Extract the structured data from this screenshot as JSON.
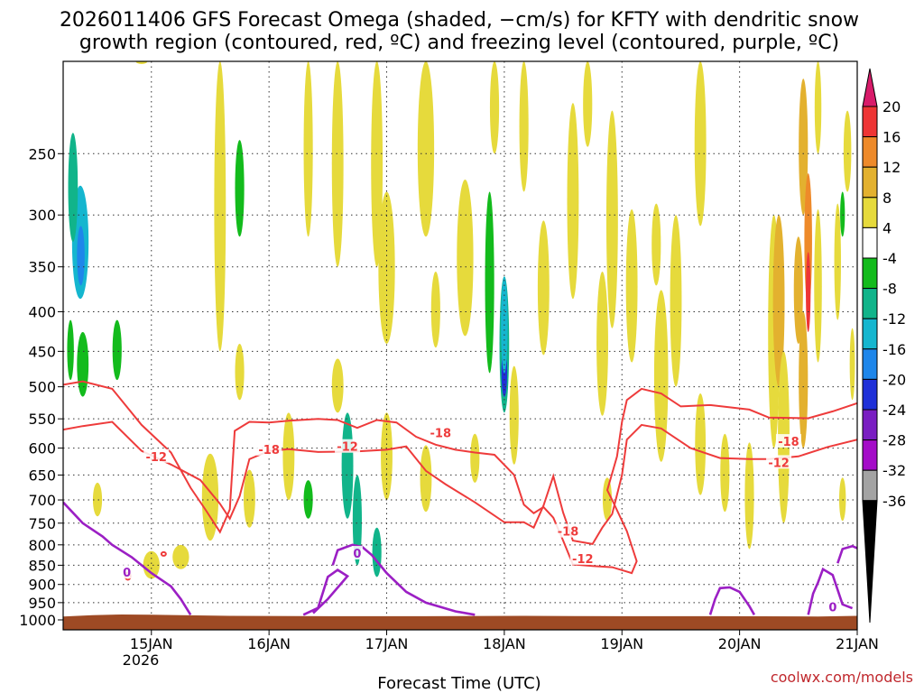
{
  "chart_data": {
    "type": "heatmap",
    "title_line1": "2026011406 GFS Forecast Omega (shaded, −cm/s) for KFTY with dendritic snow",
    "title_line2": "growth region (contoured, red, ºC) and freezing level (contoured, purple, ºC)",
    "xlabel": "Forecast Time (UTC)",
    "source": "coolwx.com/models",
    "x_ticks": [
      "15JAN",
      "16JAN",
      "17JAN",
      "18JAN",
      "19JAN",
      "20JAN",
      "21JAN"
    ],
    "x_year": "2026",
    "x_range_hours": [
      6,
      168
    ],
    "y_ticks": [
      250,
      300,
      350,
      400,
      450,
      500,
      550,
      600,
      650,
      700,
      750,
      800,
      850,
      900,
      950,
      1000
    ],
    "y_range_hPa": [
      190,
      1030
    ],
    "colorbar_labels": [
      "20",
      "16",
      "12",
      "8",
      "4",
      "-4",
      "-8",
      "-12",
      "-16",
      "-20",
      "-24",
      "-28",
      "-32",
      "-36"
    ],
    "colorbar_colors": [
      "#d81b6a",
      "#ee3535",
      "#ee8a2a",
      "#e3b12f",
      "#e6da3c",
      "#ffffff",
      "#13bb1c",
      "#11b48a",
      "#15b6cf",
      "#1e86ea",
      "#1f30d8",
      "#7a1ec2",
      "#a40cc8",
      "#a3a3a3",
      "#000000"
    ],
    "dgz_colour": "#ee3b3b",
    "freezing_colour": "#9b1fc4",
    "ground_colour": "#9e4a24",
    "contour_labels": [
      {
        "text": "-18",
        "hour": 48,
        "p": 602,
        "kind": "dgz"
      },
      {
        "text": "-12",
        "hour": 25,
        "p": 615,
        "kind": "dgz"
      },
      {
        "text": "-18",
        "hour": 83,
        "p": 573,
        "kind": "dgz"
      },
      {
        "text": "-12",
        "hour": 64,
        "p": 597,
        "kind": "dgz"
      },
      {
        "text": "-18",
        "hour": 109,
        "p": 768,
        "kind": "dgz"
      },
      {
        "text": "-12",
        "hour": 112,
        "p": 833,
        "kind": "dgz"
      },
      {
        "text": "-18",
        "hour": 154,
        "p": 588,
        "kind": "dgz"
      },
      {
        "text": "-12",
        "hour": 152,
        "p": 626,
        "kind": "dgz"
      },
      {
        "text": "0",
        "hour": 19,
        "p": 868,
        "kind": "frz"
      },
      {
        "text": "0",
        "hour": 66,
        "p": 820,
        "kind": "frz"
      },
      {
        "text": "0",
        "hour": 163,
        "p": 962,
        "kind": "frz"
      }
    ],
    "dgz_minus12": [
      [
        6,
        497
      ],
      [
        10,
        492
      ],
      [
        16,
        503
      ],
      [
        22,
        560
      ],
      [
        28,
        608
      ],
      [
        32,
        675
      ],
      [
        35,
        720
      ],
      [
        38,
        770
      ],
      [
        40,
        720
      ],
      [
        41,
        570
      ],
      [
        44,
        555
      ],
      [
        48,
        556
      ],
      [
        52,
        553
      ],
      [
        58,
        550
      ],
      [
        62,
        552
      ],
      [
        66,
        565
      ],
      [
        70,
        552
      ],
      [
        74,
        556
      ],
      [
        78,
        580
      ],
      [
        82,
        594
      ],
      [
        86,
        603
      ],
      [
        90,
        608
      ],
      [
        94,
        612
      ],
      [
        98,
        650
      ],
      [
        100,
        710
      ],
      [
        102,
        728
      ],
      [
        104,
        715
      ],
      [
        106,
        738
      ],
      [
        108,
        790
      ],
      [
        110,
        848
      ],
      [
        114,
        852
      ],
      [
        118,
        855
      ],
      [
        122,
        870
      ],
      [
        123,
        840
      ],
      [
        121,
        768
      ],
      [
        118,
        700
      ],
      [
        117,
        680
      ],
      [
        119,
        615
      ],
      [
        120,
        555
      ],
      [
        121,
        520
      ],
      [
        124,
        503
      ],
      [
        128,
        510
      ],
      [
        132,
        530
      ],
      [
        138,
        528
      ],
      [
        146,
        535
      ],
      [
        150,
        548
      ],
      [
        158,
        549
      ],
      [
        163,
        538
      ],
      [
        168,
        525
      ]
    ],
    "dgz_minus18": [
      [
        6,
        568
      ],
      [
        10,
        562
      ],
      [
        16,
        555
      ],
      [
        22,
        605
      ],
      [
        28,
        630
      ],
      [
        34,
        660
      ],
      [
        38,
        708
      ],
      [
        40,
        740
      ],
      [
        42,
        692
      ],
      [
        44,
        620
      ],
      [
        48,
        605
      ],
      [
        52,
        602
      ],
      [
        58,
        607
      ],
      [
        66,
        606
      ],
      [
        72,
        603
      ],
      [
        76,
        597
      ],
      [
        80,
        642
      ],
      [
        84,
        668
      ],
      [
        90,
        705
      ],
      [
        96,
        748
      ],
      [
        100,
        748
      ],
      [
        102,
        760
      ],
      [
        104,
        712
      ],
      [
        106,
        652
      ],
      [
        108,
        727
      ],
      [
        110,
        790
      ],
      [
        114,
        798
      ],
      [
        116,
        760
      ],
      [
        118,
        730
      ],
      [
        120,
        650
      ],
      [
        121,
        585
      ],
      [
        124,
        560
      ],
      [
        128,
        566
      ],
      [
        134,
        600
      ],
      [
        140,
        618
      ],
      [
        146,
        620
      ],
      [
        150,
        620
      ],
      [
        156,
        615
      ],
      [
        162,
        598
      ],
      [
        168,
        585
      ]
    ],
    "freezing_segments": [
      [
        [
          6,
          705
        ],
        [
          10,
          750
        ],
        [
          14,
          780
        ],
        [
          16,
          800
        ],
        [
          20,
          830
        ],
        [
          24,
          870
        ],
        [
          28,
          905
        ],
        [
          30,
          940
        ],
        [
          32,
          985
        ]
      ],
      [
        [
          55,
          985
        ],
        [
          58,
          965
        ],
        [
          60,
          880
        ],
        [
          62,
          862
        ],
        [
          64,
          878
        ],
        [
          60,
          940
        ],
        [
          57,
          980
        ]
      ],
      [
        [
          61,
          850
        ],
        [
          62,
          813
        ],
        [
          65,
          800
        ],
        [
          67,
          805
        ],
        [
          69,
          825
        ],
        [
          72,
          870
        ],
        [
          76,
          920
        ],
        [
          80,
          950
        ],
        [
          86,
          975
        ],
        [
          90,
          985
        ]
      ],
      [
        [
          138,
          985
        ],
        [
          139,
          940
        ],
        [
          140,
          910
        ],
        [
          142,
          908
        ],
        [
          144,
          920
        ],
        [
          146,
          960
        ],
        [
          147,
          985
        ]
      ],
      [
        [
          158,
          985
        ],
        [
          159,
          925
        ],
        [
          160,
          895
        ],
        [
          161,
          860
        ],
        [
          163,
          875
        ],
        [
          165,
          955
        ],
        [
          167,
          966
        ]
      ],
      [
        [
          164,
          845
        ],
        [
          165,
          810
        ],
        [
          167,
          803
        ],
        [
          168,
          808
        ]
      ]
    ],
    "omega_blobs": [
      {
        "h": 9.5,
        "p": 330,
        "w": 3,
        "dp": 110,
        "v": -14
      },
      {
        "h": 9.6,
        "p": 340,
        "w": 1.2,
        "dp": 60,
        "v": -18
      },
      {
        "h": 8.0,
        "p": 280,
        "w": 1.6,
        "dp": 90,
        "v": -8
      },
      {
        "h": 10.0,
        "p": 470,
        "w": 2,
        "dp": 90,
        "v": -6
      },
      {
        "h": 7.5,
        "p": 450,
        "w": 1.0,
        "dp": 80,
        "v": -6
      },
      {
        "h": 13.0,
        "p": 700,
        "w": 1.5,
        "dp": 70,
        "v": 6
      },
      {
        "h": 17,
        "p": 450,
        "w": 1.5,
        "dp": 80,
        "v": -6
      },
      {
        "h": 22,
        "p": 150,
        "w": 2,
        "dp": 80,
        "v": 4
      },
      {
        "h": 24,
        "p": 850,
        "w": 3,
        "dp": 70,
        "v": 4
      },
      {
        "h": 30,
        "p": 830,
        "w": 3,
        "dp": 60,
        "v": 5
      },
      {
        "h": 36,
        "p": 700,
        "w": 3,
        "dp": 180,
        "v": 5
      },
      {
        "h": 38,
        "p": 300,
        "w": 2,
        "dp": 300,
        "v": 4
      },
      {
        "h": 42,
        "p": 280,
        "w": 1.5,
        "dp": 80,
        "v": -6
      },
      {
        "h": 42,
        "p": 480,
        "w": 1.5,
        "dp": 80,
        "v": 4
      },
      {
        "h": 44,
        "p": 700,
        "w": 2,
        "dp": 120,
        "v": 4
      },
      {
        "h": 52,
        "p": 620,
        "w": 2,
        "dp": 160,
        "v": 5
      },
      {
        "h": 56,
        "p": 220,
        "w": 1.5,
        "dp": 200,
        "v": 5
      },
      {
        "h": 56,
        "p": 700,
        "w": 1.5,
        "dp": 80,
        "v": -6
      },
      {
        "h": 62,
        "p": 250,
        "w": 2,
        "dp": 200,
        "v": 4
      },
      {
        "h": 62,
        "p": 500,
        "w": 2,
        "dp": 80,
        "v": 4
      },
      {
        "h": 64,
        "p": 640,
        "w": 2,
        "dp": 200,
        "v": -8
      },
      {
        "h": 66,
        "p": 750,
        "w": 1.5,
        "dp": 200,
        "v": -8
      },
      {
        "h": 70,
        "p": 250,
        "w": 2,
        "dp": 200,
        "v": 6
      },
      {
        "h": 72,
        "p": 360,
        "w": 3,
        "dp": 160,
        "v": 5
      },
      {
        "h": 70,
        "p": 820,
        "w": 1.5,
        "dp": 120,
        "v": -8
      },
      {
        "h": 72,
        "p": 620,
        "w": 2,
        "dp": 160,
        "v": 5
      },
      {
        "h": 80,
        "p": 220,
        "w": 3,
        "dp": 200,
        "v": 5
      },
      {
        "h": 80,
        "p": 660,
        "w": 2,
        "dp": 130,
        "v": 5
      },
      {
        "h": 82,
        "p": 400,
        "w": 1.5,
        "dp": 90,
        "v": 4
      },
      {
        "h": 88,
        "p": 350,
        "w": 3,
        "dp": 160,
        "v": 4
      },
      {
        "h": 90,
        "p": 620,
        "w": 1.5,
        "dp": 90,
        "v": 5
      },
      {
        "h": 93,
        "p": 380,
        "w": 1.5,
        "dp": 200,
        "v": -7
      },
      {
        "h": 94,
        "p": 200,
        "w": 1.5,
        "dp": 100,
        "v": 5
      },
      {
        "h": 96,
        "p": 450,
        "w": 1.6,
        "dp": 180,
        "v": -8
      },
      {
        "h": 96,
        "p": 480,
        "w": 0.8,
        "dp": 70,
        "v": -20
      },
      {
        "h": 96,
        "p": 420,
        "w": 1,
        "dp": 120,
        "v": -12
      },
      {
        "h": 98,
        "p": 550,
        "w": 1.5,
        "dp": 160,
        "v": 6
      },
      {
        "h": 100,
        "p": 200,
        "w": 1.5,
        "dp": 160,
        "v": 4
      },
      {
        "h": 104,
        "p": 380,
        "w": 2,
        "dp": 150,
        "v": 5
      },
      {
        "h": 110,
        "p": 300,
        "w": 2,
        "dp": 170,
        "v": 5
      },
      {
        "h": 113,
        "p": 200,
        "w": 1.5,
        "dp": 90,
        "v": 4
      },
      {
        "h": 116,
        "p": 450,
        "w": 2,
        "dp": 190,
        "v": 7
      },
      {
        "h": 118,
        "p": 320,
        "w": 2,
        "dp": 200,
        "v": 5
      },
      {
        "h": 117,
        "p": 700,
        "w": 1.5,
        "dp": 90,
        "v": 4
      },
      {
        "h": 122,
        "p": 380,
        "w": 2,
        "dp": 170,
        "v": 4
      },
      {
        "h": 128,
        "p": 500,
        "w": 2.5,
        "dp": 250,
        "v": 5
      },
      {
        "h": 127,
        "p": 330,
        "w": 1.5,
        "dp": 80,
        "v": 4
      },
      {
        "h": 131,
        "p": 400,
        "w": 2,
        "dp": 200,
        "v": 5
      },
      {
        "h": 136,
        "p": 250,
        "w": 2,
        "dp": 120,
        "v": 4
      },
      {
        "h": 136,
        "p": 600,
        "w": 1.8,
        "dp": 180,
        "v": 5
      },
      {
        "h": 141,
        "p": 650,
        "w": 1.5,
        "dp": 150,
        "v": 4
      },
      {
        "h": 146,
        "p": 700,
        "w": 1.5,
        "dp": 220,
        "v": 4
      },
      {
        "h": 151,
        "p": 450,
        "w": 2,
        "dp": 300,
        "v": 5
      },
      {
        "h": 152,
        "p": 400,
        "w": 2,
        "dp": 200,
        "v": 9
      },
      {
        "h": 153,
        "p": 600,
        "w": 2,
        "dp": 300,
        "v": 6
      },
      {
        "h": 156,
        "p": 380,
        "w": 1.5,
        "dp": 120,
        "v": 11
      },
      {
        "h": 157,
        "p": 250,
        "w": 1.5,
        "dp": 100,
        "v": 8
      },
      {
        "h": 158,
        "p": 330,
        "w": 1.2,
        "dp": 130,
        "v": 13
      },
      {
        "h": 158,
        "p": 380,
        "w": 0.6,
        "dp": 90,
        "v": 17
      },
      {
        "h": 157,
        "p": 500,
        "w": 1.5,
        "dp": 200,
        "v": 9
      },
      {
        "h": 160,
        "p": 220,
        "w": 1.0,
        "dp": 60,
        "v": 6
      },
      {
        "h": 160,
        "p": 380,
        "w": 1.2,
        "dp": 170,
        "v": 5
      },
      {
        "h": 164,
        "p": 350,
        "w": 1.0,
        "dp": 120,
        "v": 4
      },
      {
        "h": 165,
        "p": 700,
        "w": 1.0,
        "dp": 90,
        "v": 4
      },
      {
        "h": 166,
        "p": 250,
        "w": 1.2,
        "dp": 60,
        "v": 4
      },
      {
        "h": 165,
        "p": 300,
        "w": 0.6,
        "dp": 40,
        "v": -6
      },
      {
        "h": 167,
        "p": 470,
        "w": 0.7,
        "dp": 100,
        "v": 4
      }
    ]
  }
}
